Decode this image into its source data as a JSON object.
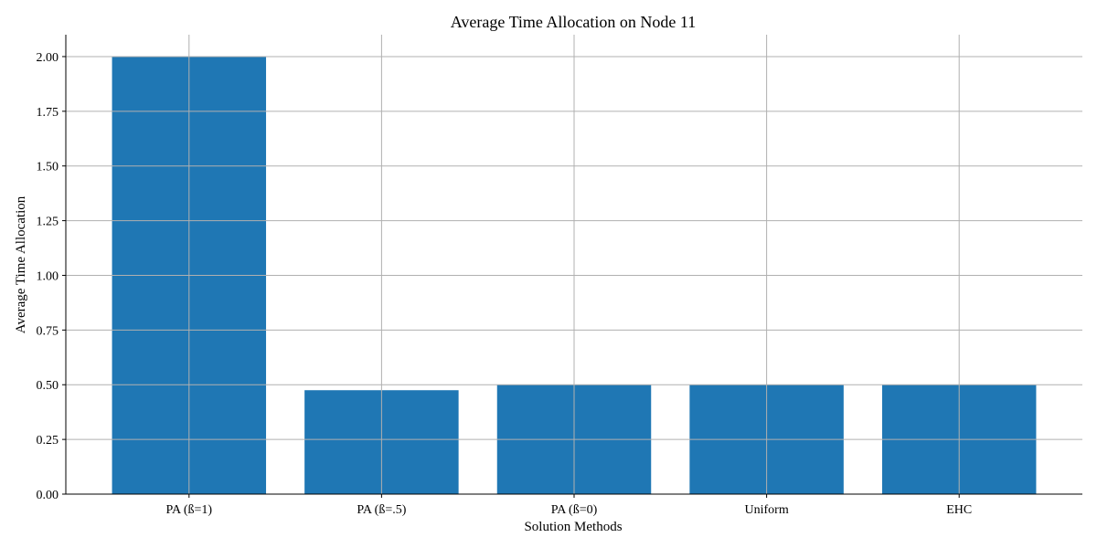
{
  "chart_data": {
    "type": "bar",
    "title": "Average Time Allocation on Node 11",
    "xlabel": "Solution Methods",
    "ylabel": "Average Time Allocation",
    "categories": [
      "PA (ß=1)",
      "PA (ß=.5)",
      "PA (ß=0)",
      "Uniform",
      "EHC"
    ],
    "values": [
      2.0,
      0.475,
      0.5,
      0.5,
      0.5
    ],
    "ylim": [
      0,
      2.1
    ],
    "yticks": [
      "0.00",
      "0.25",
      "0.50",
      "0.75",
      "1.00",
      "1.25",
      "1.50",
      "1.75",
      "2.00"
    ],
    "grid": true,
    "bar_color": "#1f77b4",
    "grid_color": "#b0b0b0"
  }
}
